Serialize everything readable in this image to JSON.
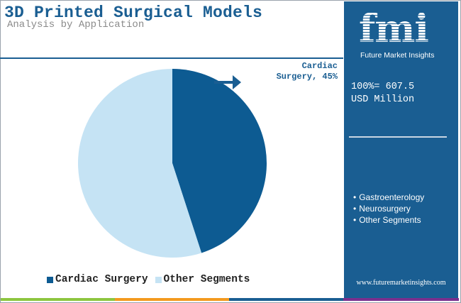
{
  "header": {
    "title": "3D Printed Surgical Models",
    "subtitle": "Analysis by Application"
  },
  "colors": {
    "primary": "#1a5e92",
    "cardiac": "#0d5b92",
    "other": "#c5e3f4",
    "bar": [
      "#8dc63f",
      "#f39a1e",
      "#1a5e92",
      "#7b2f8e"
    ]
  },
  "annotation": {
    "line1": "Cardiac",
    "line2": "Surgery, 45%",
    "icon": "arrow-right-icon"
  },
  "chart_data": {
    "type": "pie",
    "title": "3D Printed Surgical Models",
    "subtitle": "Analysis by Application",
    "slices": [
      {
        "label": "Cardiac Surgery",
        "value": 45,
        "color": "#0d5b92"
      },
      {
        "label": "Other Segments",
        "value": 55,
        "color": "#c5e3f4"
      }
    ],
    "annotations": [
      "Cardiac Surgery, 45%"
    ],
    "legend_position": "bottom"
  },
  "legend": {
    "items": [
      {
        "label": "Cardiac Surgery",
        "color": "#0d5b92"
      },
      {
        "label": "Other Segments",
        "color": "#c5e3f4"
      }
    ]
  },
  "sidebar": {
    "logo_text": "fmi",
    "logo_sub": "Future Market Insights",
    "total_line1": "100%= 607.5",
    "total_line2": "USD Million",
    "segments": [
      "Gastroenterology",
      "Neurosurgery",
      "Other Segments"
    ],
    "url": "www.futuremarketinsights.com"
  }
}
